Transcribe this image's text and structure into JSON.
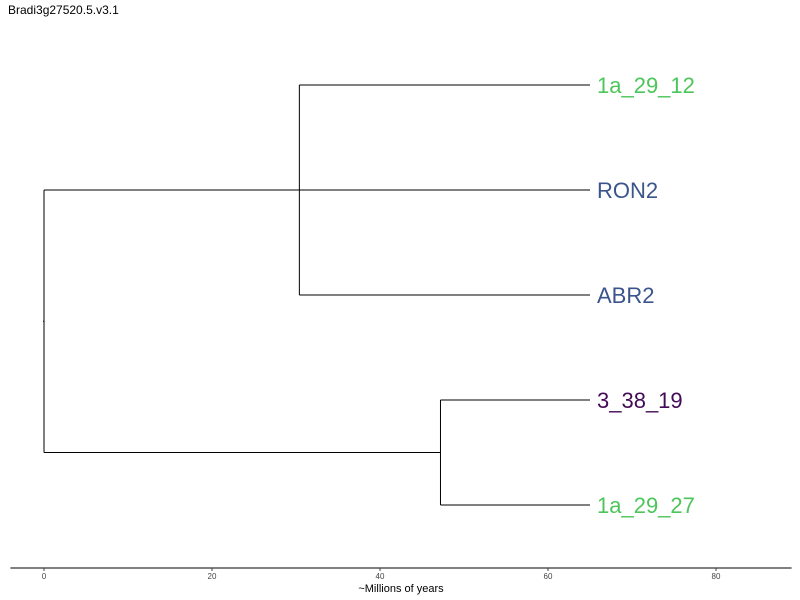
{
  "title": "Bradi3g27520.5.v3.1",
  "chart_data": {
    "type": "tree",
    "title": "Bradi3g27520.5.v3.1",
    "xlabel": "~Millions of years",
    "xlim": [
      -4,
      89
    ],
    "x_ticks": [
      0,
      20,
      40,
      60,
      80
    ],
    "leaves": [
      {
        "id": "l1",
        "label": "1a_29_12",
        "color": "#4cc65a"
      },
      {
        "id": "l2",
        "label": "RON2",
        "color": "#3b558c"
      },
      {
        "id": "l3",
        "label": "ABR2",
        "color": "#3b558c"
      },
      {
        "id": "l4",
        "label": "3_38_19",
        "color": "#430a57"
      },
      {
        "id": "l5",
        "label": "1a_29_27",
        "color": "#4cc65a"
      }
    ],
    "nodes": [
      {
        "id": "root",
        "age": 0,
        "children": [
          "nA",
          "nB"
        ]
      },
      {
        "id": "nA",
        "age": 30.4,
        "children": [
          "l1",
          "l2",
          "l3"
        ]
      },
      {
        "id": "nB",
        "age": 47.2,
        "children": [
          "l4",
          "l5"
        ]
      }
    ],
    "leaf_age": 65,
    "grid": false
  }
}
